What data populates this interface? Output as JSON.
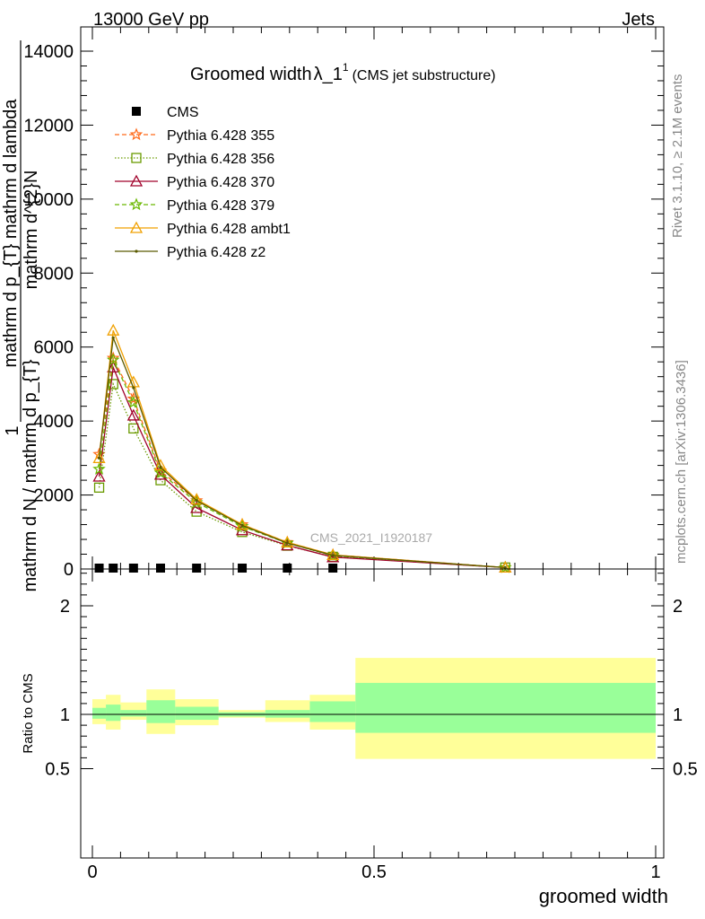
{
  "header": {
    "energy_label": "13000 GeV pp",
    "category_label": "Jets",
    "title_main": "Groomed width",
    "title_symbol": "λ_1",
    "title_superscript": "1",
    "title_note": "(CMS jet substructure)",
    "analysis_id": "CMS_2021_I1920187",
    "side_label_rivet": "Rivet 3.1.10, ≥ 2.1M events",
    "side_label_mcplots": "mcplots.cern.ch [arXiv:1306.3436]"
  },
  "colors": {
    "ratio_band_outer": "#ffff99",
    "ratio_band_inner": "#99ff99",
    "cms": "#000000",
    "p355": "#ff6a1a",
    "p356": "#6a9a00",
    "p370": "#a0002a",
    "p379": "#6ab800",
    "ambt1": "#f0a000",
    "z2": "#5a5a00"
  },
  "chart_data": [
    {
      "type": "line",
      "panel": "main",
      "ylabel_numerator": "mathrm d^{2}N",
      "ylabel_denominator": "mathrm d p_{T} mathrm d lambda",
      "ylabel_prefix": "1",
      "ylabel_prefix_denominator": "mathrm d N / mathrm d p_{T}",
      "xlim": [
        0,
        1
      ],
      "ylim": [
        0,
        14000
      ],
      "y_ticks": [
        {
          "value": 0,
          "label": "0"
        },
        {
          "value": 2000,
          "label": "2000"
        },
        {
          "value": 4000,
          "label": "4000"
        },
        {
          "value": 6000,
          "label": "6000"
        },
        {
          "value": 8000,
          "label": "8000"
        },
        {
          "value": 10000,
          "label": "10000"
        },
        {
          "value": 12000,
          "label": "12000"
        },
        {
          "value": 14000,
          "label": "14000"
        }
      ],
      "legend_position": "top-left",
      "series": [
        {
          "name": "CMS",
          "key": "cms",
          "marker": "square",
          "style": "none",
          "x": [
            0.012,
            0.037,
            0.073,
            0.121,
            0.185,
            0.266,
            0.346,
            0.427
          ],
          "y": [
            0,
            0,
            0,
            0,
            0,
            0,
            0,
            0
          ]
        },
        {
          "name": "Pythia 6.428 355",
          "key": "p355",
          "marker": "star",
          "style": "dashed",
          "x": [
            0.012,
            0.037,
            0.073,
            0.121,
            0.185,
            0.266,
            0.346,
            0.427,
            0.733
          ],
          "y": [
            3100,
            5700,
            4600,
            2650,
            1850,
            1200,
            720,
            380,
            40
          ]
        },
        {
          "name": "Pythia 6.428 356",
          "key": "p356",
          "marker": "open-square",
          "style": "dotted",
          "x": [
            0.012,
            0.037,
            0.073,
            0.121,
            0.185,
            0.266,
            0.346,
            0.427,
            0.733
          ],
          "y": [
            2200,
            5000,
            3800,
            2400,
            1550,
            1000,
            630,
            330,
            40
          ]
        },
        {
          "name": "Pythia 6.428 370",
          "key": "p370",
          "marker": "open-triangle",
          "style": "solid",
          "x": [
            0.012,
            0.037,
            0.073,
            0.121,
            0.185,
            0.266,
            0.346,
            0.427,
            0.733
          ],
          "y": [
            2500,
            5450,
            4150,
            2550,
            1650,
            1050,
            640,
            320,
            40
          ]
        },
        {
          "name": "Pythia 6.428 379",
          "key": "p379",
          "marker": "star",
          "style": "dashed",
          "x": [
            0.012,
            0.037,
            0.073,
            0.121,
            0.185,
            0.266,
            0.346,
            0.427,
            0.733
          ],
          "y": [
            2700,
            5650,
            4500,
            2600,
            1800,
            1150,
            700,
            360,
            40
          ]
        },
        {
          "name": "Pythia 6.428 ambt1",
          "key": "ambt1",
          "marker": "open-triangle",
          "style": "solid",
          "x": [
            0.012,
            0.037,
            0.073,
            0.121,
            0.185,
            0.266,
            0.346,
            0.427,
            0.733
          ],
          "y": [
            3000,
            6450,
            5050,
            2800,
            1880,
            1200,
            720,
            380,
            40
          ]
        },
        {
          "name": "Pythia 6.428 z2",
          "key": "z2",
          "marker": "dot",
          "style": "solid",
          "x": [
            0.012,
            0.037,
            0.073,
            0.121,
            0.185,
            0.266,
            0.346,
            0.427,
            0.733
          ],
          "y": [
            3000,
            6250,
            4900,
            2750,
            1850,
            1180,
            700,
            370,
            40
          ]
        }
      ]
    },
    {
      "type": "area",
      "panel": "ratio",
      "xlabel": "groomed width",
      "ylabel": "Ratio to CMS",
      "xlim": [
        0,
        1
      ],
      "ylim": [
        0.4,
        2.3
      ],
      "x_ticks": [
        {
          "value": 0,
          "label": "0"
        },
        {
          "value": 0.5,
          "label": "0.5"
        },
        {
          "value": 1,
          "label": "1"
        }
      ],
      "y_ticks": [
        {
          "value": 0.5,
          "label": "0.5"
        },
        {
          "value": 1,
          "label": "1"
        },
        {
          "value": 2,
          "label": "2"
        }
      ],
      "reference_line": 1,
      "bins": [
        {
          "lo": 0.0,
          "hi": 0.024,
          "outer": [
            0.91,
            1.14
          ],
          "inner": [
            0.96,
            1.06
          ]
        },
        {
          "lo": 0.024,
          "hi": 0.05,
          "outer": [
            0.86,
            1.18
          ],
          "inner": [
            0.94,
            1.09
          ]
        },
        {
          "lo": 0.05,
          "hi": 0.096,
          "outer": [
            0.95,
            1.11
          ],
          "inner": [
            0.98,
            1.04
          ]
        },
        {
          "lo": 0.096,
          "hi": 0.147,
          "outer": [
            0.82,
            1.23
          ],
          "inner": [
            0.92,
            1.13
          ]
        },
        {
          "lo": 0.147,
          "hi": 0.224,
          "outer": [
            0.9,
            1.14
          ],
          "inner": [
            0.95,
            1.07
          ]
        },
        {
          "lo": 0.224,
          "hi": 0.307,
          "outer": [
            0.97,
            1.04
          ],
          "inner": [
            0.98,
            1.02
          ]
        },
        {
          "lo": 0.307,
          "hi": 0.386,
          "outer": [
            0.93,
            1.13
          ],
          "inner": [
            0.97,
            1.04
          ]
        },
        {
          "lo": 0.386,
          "hi": 0.467,
          "outer": [
            0.86,
            1.18
          ],
          "inner": [
            0.93,
            1.12
          ]
        },
        {
          "lo": 0.467,
          "hi": 1.0,
          "outer": [
            0.59,
            1.52
          ],
          "inner": [
            0.83,
            1.29
          ]
        }
      ]
    }
  ]
}
